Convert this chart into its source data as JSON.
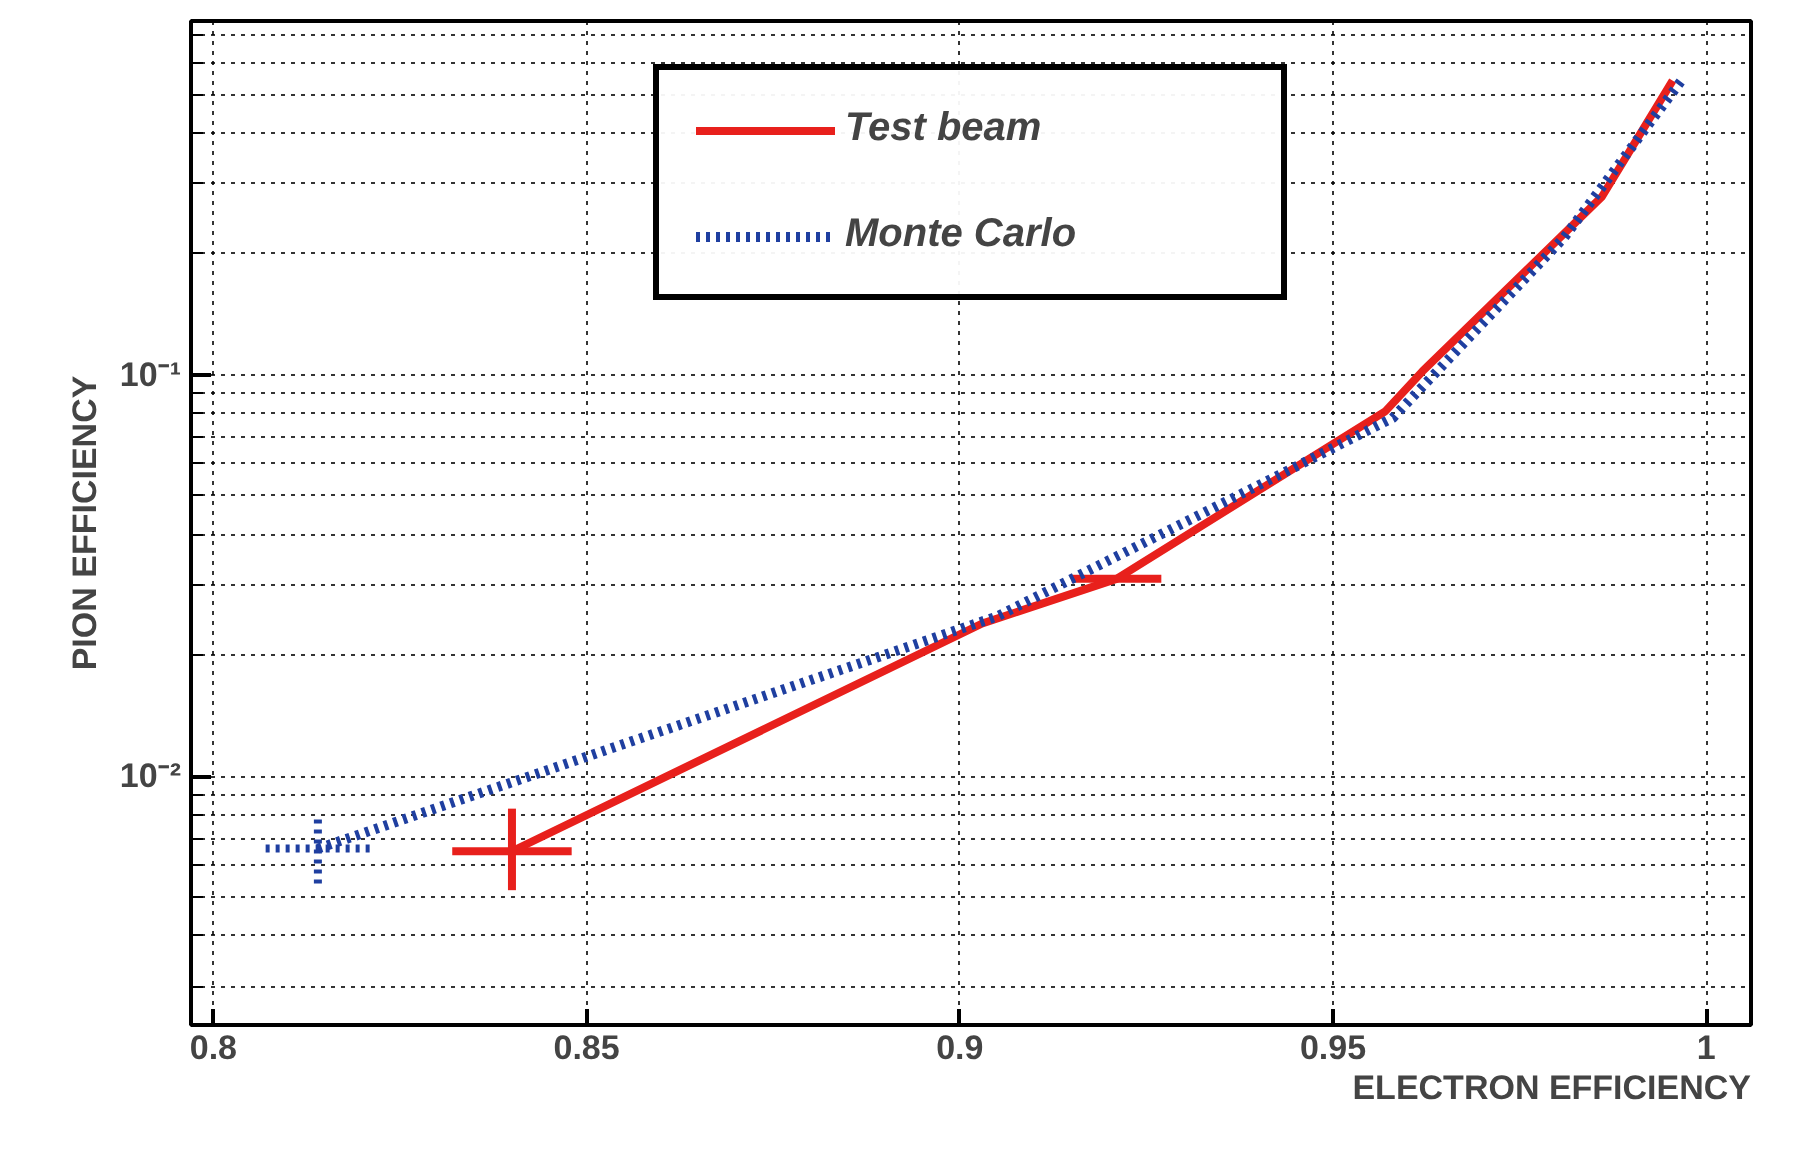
{
  "chart_data": {
    "type": "line",
    "xlabel": "ELECTRON EFFICIENCY",
    "ylabel": "PION EFFICIENCY",
    "log": "y",
    "xlim": [
      0.797,
      1.006
    ],
    "ylim": [
      0.0024,
      0.76
    ],
    "xticks": [
      0.8,
      0.85,
      0.9,
      0.95,
      1
    ],
    "yticks": [
      {
        "value": 0.01,
        "label": "10⁻²"
      },
      {
        "value": 0.1,
        "label": "10⁻¹"
      }
    ],
    "grid": true,
    "legend": "top",
    "marker": "none",
    "series": [
      {
        "name": "Test beam",
        "color": "#e8201c",
        "line_style": "solid",
        "x": [
          0.84,
          0.903,
          0.921,
          0.957,
          0.962,
          0.986,
          0.9955
        ],
        "values": [
          0.0065,
          0.024,
          0.031,
          0.081,
          0.102,
          0.277,
          0.54
        ],
        "errors": [
          [
            0.0052,
            0.0083
          ],
          null,
          null,
          null,
          null,
          null,
          null
        ],
        "xerrors": [
          0.008,
          null,
          0.006,
          null,
          null,
          null,
          null
        ]
      },
      {
        "name": "Monte Carlo",
        "color": "#1f3fa0",
        "line_style": "dotted",
        "x": [
          0.814,
          0.905,
          0.958,
          0.981,
          0.997
        ],
        "values": [
          0.0066,
          0.025,
          0.078,
          0.22,
          0.55
        ],
        "errors": [
          [
            0.0054,
            0.008
          ],
          null,
          null,
          null,
          null
        ],
        "xerrors": [
          0.007,
          null,
          null,
          null,
          null
        ]
      }
    ]
  }
}
